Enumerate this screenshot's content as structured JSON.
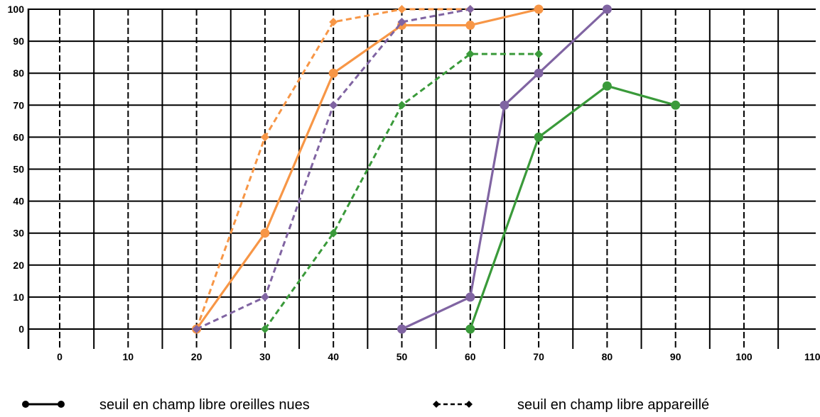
{
  "chart_data": {
    "type": "line",
    "xlim": [
      0,
      110
    ],
    "ylim": [
      0,
      100
    ],
    "x_ticks": [
      "0",
      "10",
      "20",
      "30",
      "40",
      "50",
      "60",
      "70",
      "80",
      "90",
      "100",
      "110"
    ],
    "y_ticks": [
      "0",
      "10",
      "20",
      "30",
      "40",
      "50",
      "60",
      "70",
      "80",
      "90",
      "100"
    ],
    "grid": true,
    "legend_position": "bottom",
    "legend": [
      {
        "label": "seuil en champ libre oreilles nues",
        "style": "solid"
      },
      {
        "label": "seuil en champ libre appareillé",
        "style": "dashed"
      }
    ],
    "series": [
      {
        "color": "#f79646",
        "style": "solid",
        "marker": "circle",
        "points": [
          [
            20,
            0
          ],
          [
            30,
            30
          ],
          [
            40,
            80
          ],
          [
            50,
            95
          ],
          [
            60,
            95
          ],
          [
            70,
            100
          ]
        ]
      },
      {
        "color": "#f79646",
        "style": "dashed",
        "marker": "diamond",
        "points": [
          [
            20,
            0
          ],
          [
            30,
            60
          ],
          [
            40,
            96
          ],
          [
            50,
            100
          ],
          [
            60,
            100
          ]
        ]
      },
      {
        "color": "#8064a2",
        "style": "solid",
        "marker": "circle",
        "points": [
          [
            50,
            0
          ],
          [
            60,
            10
          ],
          [
            65,
            70
          ],
          [
            70,
            80
          ],
          [
            80,
            100
          ]
        ]
      },
      {
        "color": "#8064a2",
        "style": "dashed",
        "marker": "diamond",
        "points": [
          [
            20,
            0
          ],
          [
            30,
            10
          ],
          [
            40,
            70
          ],
          [
            50,
            96
          ],
          [
            60,
            100
          ]
        ]
      },
      {
        "color": "#3a9a3a",
        "style": "solid",
        "marker": "circle",
        "points": [
          [
            60,
            0
          ],
          [
            70,
            60
          ],
          [
            80,
            76
          ],
          [
            90,
            70
          ]
        ]
      },
      {
        "color": "#3a9a3a",
        "style": "dashed",
        "marker": "diamond",
        "points": [
          [
            30,
            0
          ],
          [
            40,
            30
          ],
          [
            50,
            70
          ],
          [
            60,
            86
          ],
          [
            70,
            86
          ]
        ]
      }
    ]
  }
}
